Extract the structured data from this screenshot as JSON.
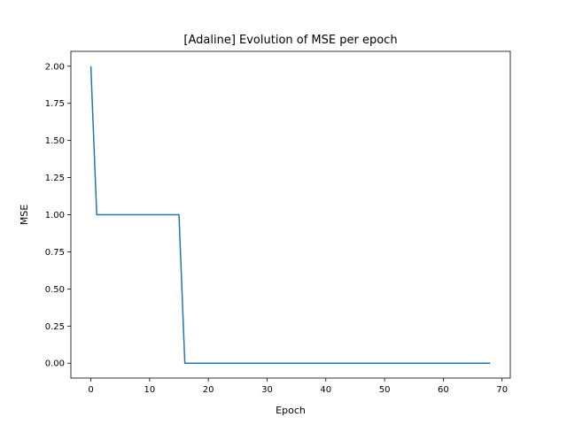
{
  "chart_data": {
    "type": "line",
    "title": "[Adaline] Evolution of MSE per epoch",
    "xlabel": "Epoch",
    "ylabel": "MSE",
    "xlim": [
      -3.4,
      71.4
    ],
    "ylim": [
      -0.1,
      2.1
    ],
    "xticks": [
      0,
      10,
      20,
      30,
      40,
      50,
      60,
      70
    ],
    "xtick_labels": [
      "0",
      "10",
      "20",
      "30",
      "40",
      "50",
      "60",
      "70"
    ],
    "yticks": [
      0,
      0.25,
      0.5,
      0.75,
      1.0,
      1.25,
      1.5,
      1.75,
      2.0
    ],
    "ytick_labels": [
      "0.00",
      "0.25",
      "0.50",
      "0.75",
      "1.00",
      "1.25",
      "1.50",
      "1.75",
      "2.00"
    ],
    "grid": false,
    "series": [
      {
        "color": "#1f77b4",
        "x": [
          0,
          1,
          15,
          16,
          68
        ],
        "y": [
          2.0,
          1.0,
          1.0,
          0.0,
          0.0
        ]
      }
    ]
  }
}
